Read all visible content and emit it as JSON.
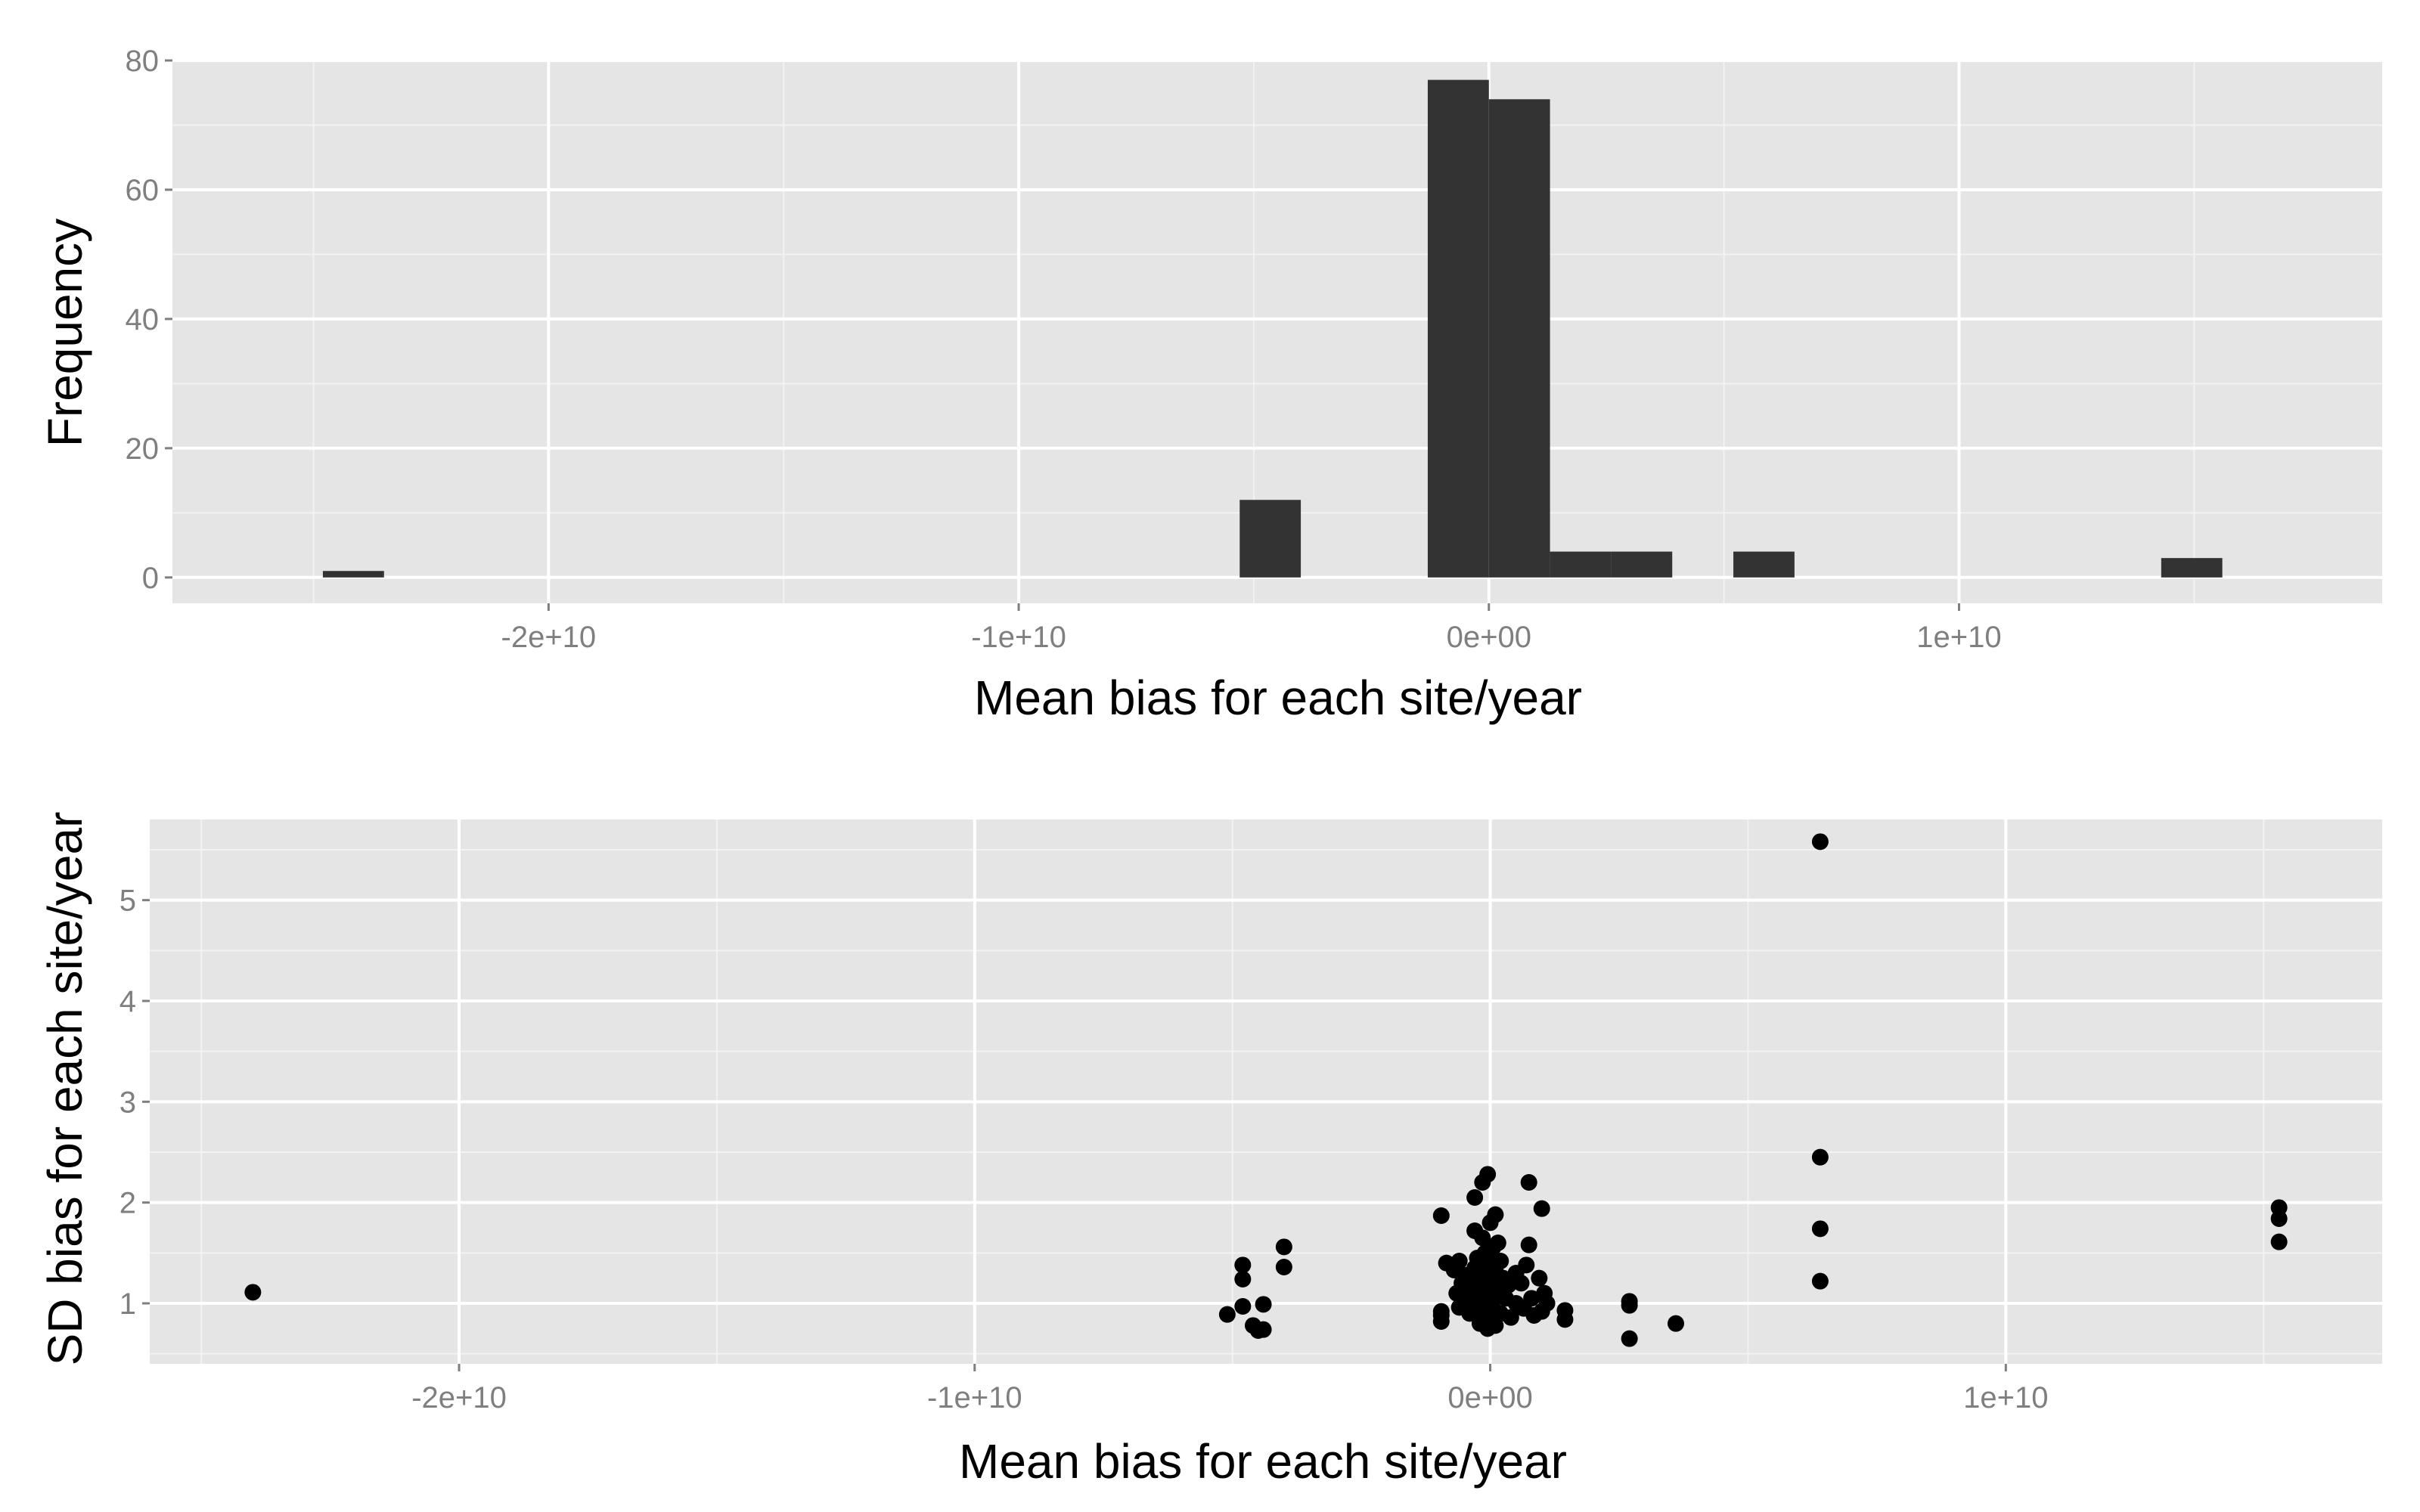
{
  "chart_data": [
    {
      "type": "bar",
      "subtype": "histogram",
      "xlabel": "Mean bias for each site/year",
      "ylabel": "Frequency",
      "xlim": [
        -28000000000.0,
        19000000000.0
      ],
      "ylim": [
        -4,
        80
      ],
      "grid": true,
      "x_ticks": [
        {
          "value": -20000000000.0,
          "label": "-2e+10"
        },
        {
          "value": -10000000000.0,
          "label": "-1e+10"
        },
        {
          "value": 0,
          "label": "0e+00"
        },
        {
          "value": 10000000000.0,
          "label": "1e+10"
        }
      ],
      "y_ticks": [
        {
          "value": 0,
          "label": "0"
        },
        {
          "value": 20,
          "label": "20"
        },
        {
          "value": 40,
          "label": "40"
        },
        {
          "value": 60,
          "label": "60"
        },
        {
          "value": 80,
          "label": "80"
        }
      ],
      "bins": [
        {
          "x0": -24800000000.0,
          "x1": -23500000000.0,
          "count": 1
        },
        {
          "x0": -5300000000.0,
          "x1": -4000000000.0,
          "count": 12
        },
        {
          "x0": -1300000000.0,
          "x1": 0.0,
          "count": 77
        },
        {
          "x0": 0.0,
          "x1": 1300000000.0,
          "count": 74
        },
        {
          "x0": 1300000000.0,
          "x1": 2600000000.0,
          "count": 4
        },
        {
          "x0": 2600000000.0,
          "x1": 3900000000.0,
          "count": 4
        },
        {
          "x0": 5200000000.0,
          "x1": 6500000000.0,
          "count": 4
        },
        {
          "x0": 14300000000.0,
          "x1": 15600000000.0,
          "count": 3
        }
      ],
      "colors": {
        "panel": "#e5e5e5",
        "grid_major": "#ffffff",
        "grid_minor": "#f2f2f2",
        "bar": "#333333"
      }
    },
    {
      "type": "scatter",
      "xlabel": "Mean bias for each site/year",
      "ylabel": "SD bias for each site/year",
      "xlim": [
        -26000000000.0,
        17300000000.0
      ],
      "ylim": [
        0.4,
        5.8
      ],
      "grid": true,
      "x_ticks": [
        {
          "value": -20000000000.0,
          "label": "-2e+10"
        },
        {
          "value": -10000000000.0,
          "label": "-1e+10"
        },
        {
          "value": 0,
          "label": "0e+00"
        },
        {
          "value": 10000000000.0,
          "label": "1e+10"
        }
      ],
      "y_ticks": [
        {
          "value": 1,
          "label": "1"
        },
        {
          "value": 2,
          "label": "2"
        },
        {
          "value": 3,
          "label": "3"
        },
        {
          "value": 4,
          "label": "4"
        },
        {
          "value": 5,
          "label": "5"
        }
      ],
      "points": [
        [
          -24000000000.0,
          1.11
        ],
        [
          -5100000000.0,
          0.89
        ],
        [
          -4800000000.0,
          0.97
        ],
        [
          -4800000000.0,
          1.24
        ],
        [
          -4800000000.0,
          1.38
        ],
        [
          -4600000000.0,
          0.78
        ],
        [
          -4500000000.0,
          0.73
        ],
        [
          -4400000000.0,
          0.99
        ],
        [
          -4400000000.0,
          0.74
        ],
        [
          -4000000000.0,
          1.36
        ],
        [
          -4000000000.0,
          1.56
        ],
        [
          -950000000.0,
          1.87
        ],
        [
          -950000000.0,
          0.92
        ],
        [
          -950000000.0,
          0.82
        ],
        [
          -950000000.0,
          0.88
        ],
        [
          -850000000.0,
          1.4
        ],
        [
          -700000000.0,
          1.33
        ],
        [
          -650000000.0,
          1.1
        ],
        [
          -600000000.0,
          1.42
        ],
        [
          -600000000.0,
          0.96
        ],
        [
          -550000000.0,
          1.2
        ],
        [
          -500000000.0,
          1.05
        ],
        [
          -450000000.0,
          1.28
        ],
        [
          -400000000.0,
          0.9
        ],
        [
          -400000000.0,
          1.15
        ],
        [
          -350000000.0,
          1.0
        ],
        [
          -300000000.0,
          2.05
        ],
        [
          -300000000.0,
          1.72
        ],
        [
          -300000000.0,
          1.35
        ],
        [
          -300000000.0,
          1.22
        ],
        [
          -250000000.0,
          1.45
        ],
        [
          -250000000.0,
          1.1
        ],
        [
          -250000000.0,
          0.88
        ],
        [
          -200000000.0,
          1.3
        ],
        [
          -200000000.0,
          0.8
        ],
        [
          -150000000.0,
          2.2
        ],
        [
          -150000000.0,
          1.65
        ],
        [
          -150000000.0,
          1.18
        ],
        [
          -150000000.0,
          1.02
        ],
        [
          -100000000.0,
          1.5
        ],
        [
          -100000000.0,
          0.93
        ],
        [
          -50000000.0,
          2.28
        ],
        [
          -50000000.0,
          1.28
        ],
        [
          -50000000.0,
          0.75
        ],
        [
          0.0,
          1.8
        ],
        [
          0.0,
          1.4
        ],
        [
          0.0,
          1.12
        ],
        [
          0.0,
          1.0
        ],
        [
          0.0,
          0.85
        ],
        [
          50000000.0,
          1.55
        ],
        [
          50000000.0,
          1.22
        ],
        [
          50000000.0,
          0.95
        ],
        [
          100000000.0,
          1.88
        ],
        [
          100000000.0,
          1.32
        ],
        [
          100000000.0,
          1.08
        ],
        [
          100000000.0,
          0.78
        ],
        [
          150000000.0,
          1.6
        ],
        [
          150000000.0,
          1.15
        ],
        [
          200000000.0,
          1.42
        ],
        [
          200000000.0,
          0.9
        ],
        [
          250000000.0,
          1.25
        ],
        [
          300000000.0,
          1.05
        ],
        [
          350000000.0,
          1.18
        ],
        [
          400000000.0,
          0.86
        ],
        [
          500000000.0,
          1.0
        ],
        [
          500000000.0,
          1.3
        ],
        [
          600000000.0,
          1.2
        ],
        [
          650000000.0,
          0.95
        ],
        [
          700000000.0,
          1.38
        ],
        [
          750000000.0,
          2.2
        ],
        [
          750000000.0,
          1.58
        ],
        [
          800000000.0,
          1.05
        ],
        [
          850000000.0,
          0.88
        ],
        [
          950000000.0,
          1.25
        ],
        [
          1000000000.0,
          0.92
        ],
        [
          1000000000.0,
          1.94
        ],
        [
          1050000000.0,
          1.1
        ],
        [
          1100000000.0,
          1.0
        ],
        [
          1450000000.0,
          0.93
        ],
        [
          1450000000.0,
          0.84
        ],
        [
          2700000000.0,
          1.02
        ],
        [
          2700000000.0,
          0.98
        ],
        [
          2700000000.0,
          0.65
        ],
        [
          3600000000.0,
          0.8
        ],
        [
          6400000000.0,
          5.58
        ],
        [
          6400000000.0,
          2.45
        ],
        [
          6400000000.0,
          1.74
        ],
        [
          6400000000.0,
          1.22
        ],
        [
          15300000000.0,
          1.95
        ],
        [
          15300000000.0,
          1.84
        ],
        [
          15300000000.0,
          1.61
        ]
      ],
      "colors": {
        "panel": "#e5e5e5",
        "grid_major": "#ffffff",
        "grid_minor": "#f2f2f2",
        "point": "#000000"
      }
    }
  ]
}
